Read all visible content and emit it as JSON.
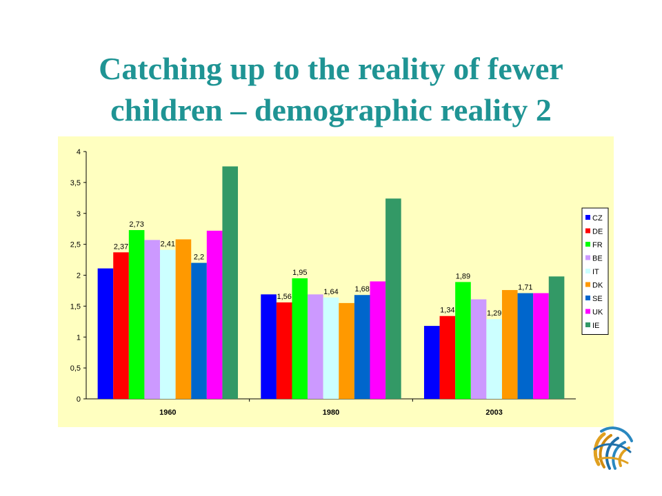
{
  "title": {
    "line1": "Catching up to the reality of fewer",
    "line2": "children – demographic reality 2"
  },
  "chart_data": {
    "type": "bar",
    "title": "",
    "xlabel": "",
    "ylabel": "",
    "ylim": [
      0,
      4
    ],
    "yticks": [
      "0",
      "0,5",
      "1",
      "1,5",
      "2",
      "2,5",
      "3",
      "3,5",
      "4"
    ],
    "grid": false,
    "legend_position": "right",
    "categories": [
      "1960",
      "1980",
      "2003"
    ],
    "series": [
      {
        "name": "CZ",
        "color": "#0000ff",
        "values": [
          2.11,
          1.69,
          1.18
        ],
        "labels": [
          "",
          "",
          ""
        ]
      },
      {
        "name": "DE",
        "color": "#ff0000",
        "values": [
          2.37,
          1.56,
          1.34
        ],
        "labels": [
          "2,37",
          "1,56",
          "1,34"
        ]
      },
      {
        "name": "FR",
        "color": "#00ff00",
        "values": [
          2.73,
          1.95,
          1.89
        ],
        "labels": [
          "2,73",
          "1,95",
          "1,89"
        ]
      },
      {
        "name": "BE",
        "color": "#cc99ff",
        "values": [
          2.57,
          1.69,
          1.61
        ],
        "labels": [
          "",
          "",
          ""
        ]
      },
      {
        "name": "IT",
        "color": "#ccffff",
        "values": [
          2.41,
          1.64,
          1.29
        ],
        "labels": [
          "2,41",
          "1,64",
          "1,29"
        ]
      },
      {
        "name": "DK",
        "color": "#ff9900",
        "values": [
          2.58,
          1.55,
          1.76
        ],
        "labels": [
          "",
          "",
          ""
        ]
      },
      {
        "name": "SE",
        "color": "#0066cc",
        "values": [
          2.2,
          1.68,
          1.71
        ],
        "labels": [
          "2,2",
          "1,68",
          "1,71"
        ]
      },
      {
        "name": "UK",
        "color": "#ff00ff",
        "values": [
          2.72,
          1.9,
          1.71
        ],
        "labels": [
          "",
          "",
          ""
        ]
      },
      {
        "name": "IE",
        "color": "#339966",
        "values": [
          3.76,
          3.24,
          1.98
        ],
        "labels": [
          "",
          "",
          ""
        ]
      }
    ]
  }
}
